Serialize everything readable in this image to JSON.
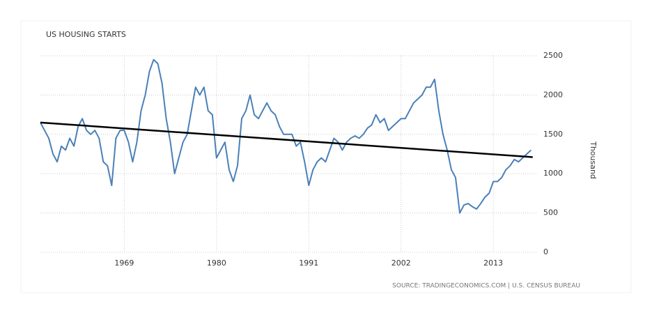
{
  "chart_data": {
    "type": "line",
    "title": "US HOUSING STARTS",
    "y_label": "Thousand",
    "source": "SOURCE: TRADINGECONOMICS.COM | U.S. CENSUS BUREAU",
    "x": [
      1959,
      1959.5,
      1960,
      1960.5,
      1961,
      1961.5,
      1962,
      1962.5,
      1963,
      1963.5,
      1964,
      1964.5,
      1965,
      1965.5,
      1966,
      1966.5,
      1967,
      1967.5,
      1968,
      1968.5,
      1969,
      1969.5,
      1970,
      1970.5,
      1971,
      1971.5,
      1972,
      1972.5,
      1973,
      1973.5,
      1974,
      1974.5,
      1975,
      1975.5,
      1976,
      1976.5,
      1977,
      1977.5,
      1978,
      1978.5,
      1979,
      1979.5,
      1980,
      1980.5,
      1981,
      1981.5,
      1982,
      1982.5,
      1983,
      1983.5,
      1984,
      1984.5,
      1985,
      1985.5,
      1986,
      1986.5,
      1987,
      1987.5,
      1988,
      1988.5,
      1989,
      1989.5,
      1990,
      1990.5,
      1991,
      1991.5,
      1992,
      1992.5,
      1993,
      1993.5,
      1994,
      1994.5,
      1995,
      1995.5,
      1996,
      1996.5,
      1997,
      1997.5,
      1998,
      1998.5,
      1999,
      1999.5,
      2000,
      2000.5,
      2001,
      2001.5,
      2002,
      2002.5,
      2003,
      2003.5,
      2004,
      2004.5,
      2005,
      2005.5,
      2006,
      2006.5,
      2007,
      2007.5,
      2008,
      2008.5,
      2009,
      2009.5,
      2010,
      2010.5,
      2011,
      2011.5,
      2012,
      2012.5,
      2013,
      2013.5,
      2014,
      2014.5,
      2015,
      2015.5,
      2016,
      2016.5,
      2017,
      2017.5
    ],
    "series": [
      {
        "color": "#4a80b8",
        "values": [
          1650,
          1550,
          1450,
          1250,
          1150,
          1350,
          1300,
          1450,
          1350,
          1600,
          1700,
          1550,
          1500,
          1550,
          1450,
          1150,
          1100,
          850,
          1450,
          1550,
          1550,
          1400,
          1150,
          1400,
          1800,
          2000,
          2300,
          2450,
          2400,
          2150,
          1700,
          1400,
          1000,
          1200,
          1400,
          1500,
          1800,
          2100,
          2000,
          2100,
          1800,
          1750,
          1200,
          1300,
          1400,
          1050,
          900,
          1100,
          1700,
          1800,
          2000,
          1750,
          1700,
          1800,
          1900,
          1800,
          1750,
          1600,
          1500,
          1500,
          1500,
          1350,
          1400,
          1150,
          850,
          1050,
          1150,
          1200,
          1150,
          1300,
          1450,
          1400,
          1300,
          1400,
          1450,
          1480,
          1450,
          1500,
          1580,
          1620,
          1750,
          1650,
          1700,
          1550,
          1600,
          1650,
          1700,
          1700,
          1800,
          1900,
          1950,
          2000,
          2100,
          2100,
          2200,
          1800,
          1500,
          1300,
          1050,
          950,
          500,
          600,
          620,
          580,
          550,
          620,
          700,
          750,
          900,
          900,
          950,
          1050,
          1100,
          1180,
          1150,
          1200,
          1250,
          1300
        ]
      }
    ],
    "trend": {
      "x": [
        1959,
        2017.7
      ],
      "values": [
        1650,
        1210
      ],
      "color": "#000000"
    },
    "xlim": [
      1959,
      2018.3
    ],
    "xticks": [
      1969,
      1980,
      1991,
      2002,
      2013
    ],
    "ylim": [
      0,
      2500
    ],
    "yticks": [
      0,
      500,
      1000,
      1500,
      2000,
      2500
    ],
    "grid": true
  }
}
